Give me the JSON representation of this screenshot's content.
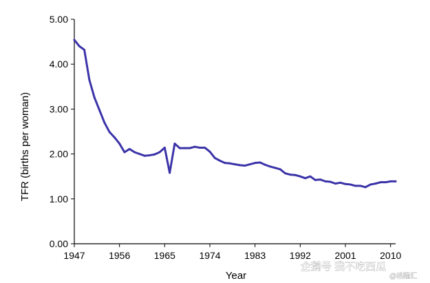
{
  "chart_data": {
    "type": "line",
    "title": "",
    "xlabel": "Year",
    "ylabel": "TFR (births per woman)",
    "xlim": [
      1947,
      2011
    ],
    "ylim": [
      0,
      5
    ],
    "x_ticks": [
      "1947",
      "1956",
      "1965",
      "1974",
      "1983",
      "1992",
      "2001",
      "2010"
    ],
    "y_ticks": [
      "0.00",
      "1.00",
      "2.00",
      "3.00",
      "4.00",
      "5.00"
    ],
    "grid": false,
    "legend": "none",
    "series": [
      {
        "color": "#3b33a8",
        "x": [
          1947,
          1948,
          1949,
          1950,
          1951,
          1952,
          1953,
          1954,
          1955,
          1956,
          1957,
          1958,
          1959,
          1960,
          1961,
          1962,
          1963,
          1964,
          1965,
          1966,
          1967,
          1968,
          1969,
          1970,
          1971,
          1972,
          1973,
          1974,
          1975,
          1976,
          1977,
          1978,
          1979,
          1980,
          1981,
          1982,
          1983,
          1984,
          1985,
          1986,
          1987,
          1988,
          1989,
          1990,
          1991,
          1992,
          1993,
          1994,
          1995,
          1996,
          1997,
          1998,
          1999,
          2000,
          2001,
          2002,
          2003,
          2004,
          2005,
          2006,
          2007,
          2008,
          2009,
          2010,
          2011
        ],
        "y": [
          4.54,
          4.4,
          4.32,
          3.65,
          3.26,
          2.98,
          2.7,
          2.49,
          2.37,
          2.23,
          2.04,
          2.11,
          2.04,
          2.0,
          1.96,
          1.97,
          1.99,
          2.04,
          2.14,
          1.58,
          2.23,
          2.13,
          2.13,
          2.13,
          2.16,
          2.14,
          2.14,
          2.05,
          1.91,
          1.85,
          1.8,
          1.79,
          1.77,
          1.75,
          1.74,
          1.77,
          1.8,
          1.81,
          1.76,
          1.72,
          1.69,
          1.66,
          1.57,
          1.54,
          1.53,
          1.5,
          1.46,
          1.5,
          1.42,
          1.43,
          1.39,
          1.38,
          1.34,
          1.36,
          1.33,
          1.32,
          1.29,
          1.29,
          1.26,
          1.32,
          1.34,
          1.37,
          1.37,
          1.39,
          1.39
        ]
      }
    ]
  },
  "watermark": {
    "text": "企鹅号 我不吃西瓜",
    "sub_text": "@格隆汇"
  }
}
